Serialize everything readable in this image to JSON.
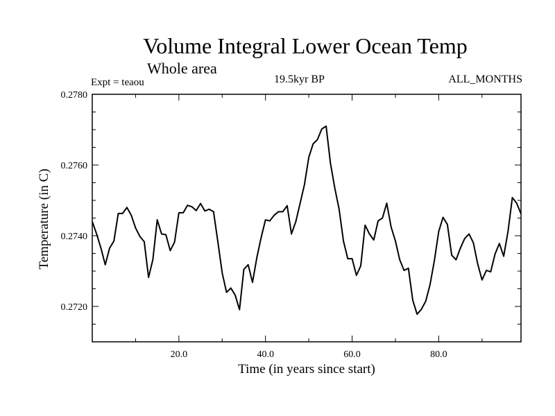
{
  "chart_data": {
    "type": "line",
    "title": "Volume Integral Lower Ocean Temp",
    "subtitle": "Whole area",
    "experiment_label": "Expt = teaou",
    "period_label": "19.5kyr BP",
    "months_label": "ALL_MONTHS",
    "xlabel": "Time (in years since start)",
    "ylabel": "Temperature (in C)",
    "xlim": [
      0,
      99
    ],
    "ylim": [
      0.271,
      0.278
    ],
    "xticks": [
      20,
      40,
      60,
      80
    ],
    "xtick_labels": [
      "20.0",
      "40.0",
      "60.0",
      "80.0"
    ],
    "yticks": [
      0.272,
      0.274,
      0.276,
      0.278
    ],
    "ytick_labels": [
      "0.2720",
      "0.2740",
      "0.2760",
      "0.2780"
    ],
    "series": [
      {
        "name": "Volume Integral Lower Ocean Temp",
        "x": [
          0,
          1,
          2,
          3,
          4,
          5,
          6,
          7,
          8,
          9,
          10,
          11,
          12,
          13,
          14,
          15,
          16,
          17,
          18,
          19,
          20,
          21,
          22,
          23,
          24,
          25,
          26,
          27,
          28,
          29,
          30,
          31,
          32,
          33,
          34,
          35,
          36,
          37,
          38,
          39,
          40,
          41,
          42,
          43,
          44,
          45,
          46,
          47,
          48,
          49,
          50,
          51,
          52,
          53,
          54,
          55,
          56,
          57,
          58,
          59,
          60,
          61,
          62,
          63,
          64,
          65,
          66,
          67,
          68,
          69,
          70,
          71,
          72,
          73,
          74,
          75,
          76,
          77,
          78,
          79,
          80,
          81,
          82,
          83,
          84,
          85,
          86,
          87,
          88,
          89,
          90,
          91,
          92,
          93,
          94,
          95,
          96,
          97,
          98,
          99
        ],
        "values": [
          0.2744,
          0.27405,
          0.27365,
          0.27318,
          0.27365,
          0.27385,
          0.27463,
          0.27463,
          0.2748,
          0.27458,
          0.27422,
          0.27398,
          0.27383,
          0.27282,
          0.27333,
          0.27445,
          0.27405,
          0.27403,
          0.27358,
          0.27382,
          0.27465,
          0.27465,
          0.27486,
          0.27482,
          0.27471,
          0.27491,
          0.2747,
          0.27475,
          0.27468,
          0.27383,
          0.27295,
          0.2724,
          0.27252,
          0.27232,
          0.27191,
          0.27305,
          0.27318,
          0.27268,
          0.27338,
          0.27395,
          0.27445,
          0.27442,
          0.27458,
          0.27468,
          0.27468,
          0.27485,
          0.27405,
          0.2744,
          0.27492,
          0.27545,
          0.27622,
          0.2766,
          0.27672,
          0.27702,
          0.2771,
          0.27605,
          0.27535,
          0.27475,
          0.27385,
          0.27335,
          0.27335,
          0.27288,
          0.27315,
          0.2743,
          0.27405,
          0.27388,
          0.27442,
          0.2745,
          0.27492,
          0.27425,
          0.27385,
          0.27332,
          0.27302,
          0.27308,
          0.27218,
          0.27178,
          0.27192,
          0.27215,
          0.27262,
          0.2733,
          0.27412,
          0.27452,
          0.27432,
          0.27345,
          0.27332,
          0.27365,
          0.27392,
          0.27405,
          0.2738,
          0.2732,
          0.27275,
          0.27302,
          0.27298,
          0.27348,
          0.27378,
          0.27342,
          0.27412,
          0.27508,
          0.27492,
          0.27462
        ]
      }
    ]
  }
}
